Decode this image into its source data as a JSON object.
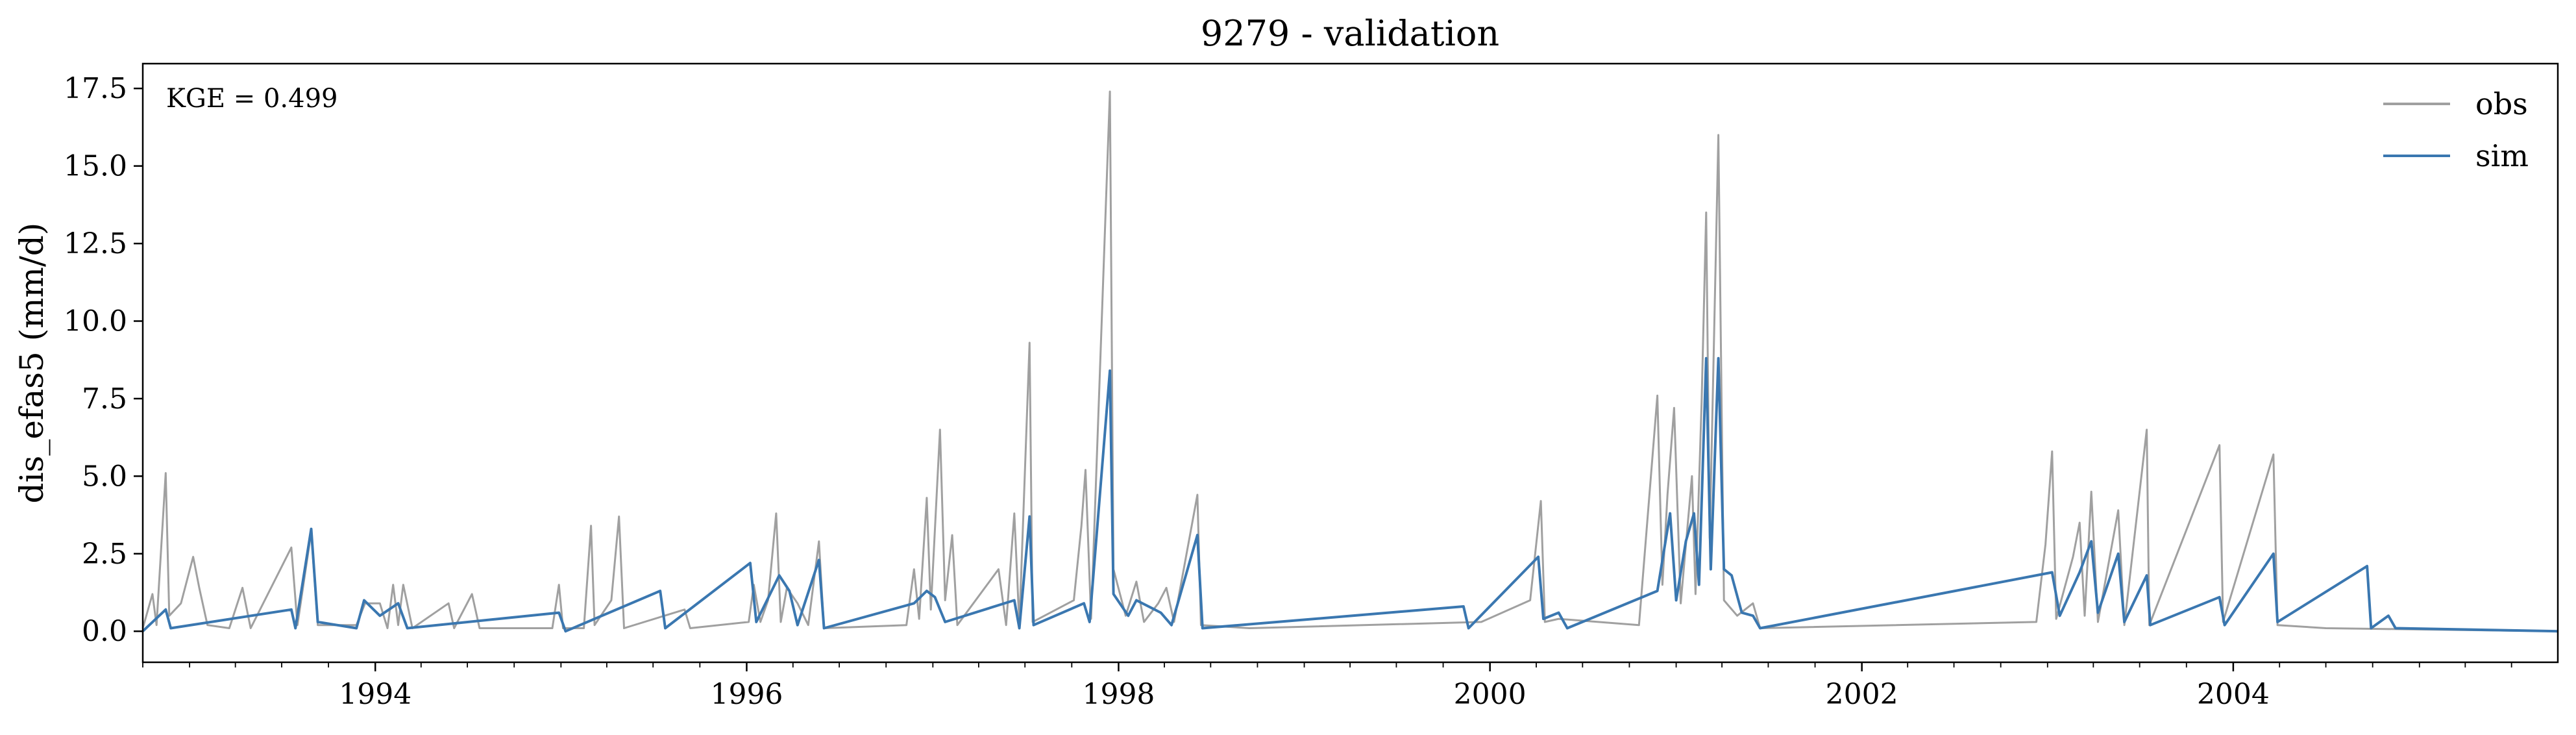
{
  "chart_data": {
    "type": "line",
    "title": "9279 - validation",
    "xlabel": "",
    "ylabel": "dis_efas5 (mm/d)",
    "annotation": "KGE = 0.499",
    "x_range": [
      "1992-10-01",
      "2005-09-30"
    ],
    "ylim": [
      -1.0,
      18.3
    ],
    "grid": false,
    "legend_position": "top-right",
    "x_ticks": [
      "1994",
      "1996",
      "1998",
      "2000",
      "2002",
      "2004"
    ],
    "y_ticks": [
      "0.0",
      "2.5",
      "5.0",
      "7.5",
      "10.0",
      "12.5",
      "15.0",
      "17.5"
    ],
    "series": [
      {
        "name": "obs",
        "color": "#a0a0a0",
        "points": [
          [
            "1992-10-01",
            0.1
          ],
          [
            "1992-10-20",
            1.2
          ],
          [
            "1992-10-28",
            0.2
          ],
          [
            "1992-11-15",
            5.1
          ],
          [
            "1992-11-22",
            0.5
          ],
          [
            "1992-12-15",
            0.9
          ],
          [
            "1993-01-08",
            2.4
          ],
          [
            "1993-01-20",
            1.4
          ],
          [
            "1993-02-05",
            0.2
          ],
          [
            "1993-03-20",
            0.1
          ],
          [
            "1993-04-15",
            1.4
          ],
          [
            "1993-05-01",
            0.1
          ],
          [
            "1993-07-20",
            2.7
          ],
          [
            "1993-08-01",
            0.2
          ],
          [
            "1993-08-28",
            3.2
          ],
          [
            "1993-09-10",
            0.2
          ],
          [
            "1993-11-25",
            0.2
          ],
          [
            "1993-12-12",
            0.9
          ],
          [
            "1994-01-10",
            0.9
          ],
          [
            "1994-01-25",
            0.1
          ],
          [
            "1994-02-05",
            1.5
          ],
          [
            "1994-02-15",
            0.2
          ],
          [
            "1994-02-25",
            1.5
          ],
          [
            "1994-03-15",
            0.1
          ],
          [
            "1994-05-25",
            0.9
          ],
          [
            "1994-06-05",
            0.1
          ],
          [
            "1994-07-10",
            1.2
          ],
          [
            "1994-07-25",
            0.1
          ],
          [
            "1994-12-15",
            0.1
          ],
          [
            "1994-12-28",
            1.5
          ],
          [
            "1995-01-05",
            0.1
          ],
          [
            "1995-02-15",
            0.1
          ],
          [
            "1995-03-01",
            3.4
          ],
          [
            "1995-03-08",
            0.2
          ],
          [
            "1995-04-10",
            1.0
          ],
          [
            "1995-04-25",
            3.7
          ],
          [
            "1995-05-05",
            0.1
          ],
          [
            "1995-09-01",
            0.7
          ],
          [
            "1995-09-12",
            0.1
          ],
          [
            "1996-01-05",
            0.3
          ],
          [
            "1996-01-15",
            1.5
          ],
          [
            "1996-01-28",
            0.3
          ],
          [
            "1996-02-12",
            1.0
          ],
          [
            "1996-02-28",
            3.8
          ],
          [
            "1996-03-08",
            0.3
          ],
          [
            "1996-03-20",
            1.4
          ],
          [
            "1996-04-10",
            0.9
          ],
          [
            "1996-05-01",
            0.2
          ],
          [
            "1996-05-22",
            2.9
          ],
          [
            "1996-06-01",
            0.1
          ],
          [
            "1996-11-10",
            0.2
          ],
          [
            "1996-11-25",
            2.0
          ],
          [
            "1996-12-05",
            0.4
          ],
          [
            "1996-12-20",
            4.3
          ],
          [
            "1996-12-28",
            0.7
          ],
          [
            "1997-01-15",
            6.5
          ],
          [
            "1997-01-25",
            1.0
          ],
          [
            "1997-02-08",
            3.1
          ],
          [
            "1997-02-18",
            0.2
          ],
          [
            "1997-05-10",
            2.0
          ],
          [
            "1997-05-25",
            0.2
          ],
          [
            "1997-06-10",
            3.8
          ],
          [
            "1997-06-20",
            0.2
          ],
          [
            "1997-07-10",
            9.3
          ],
          [
            "1997-07-16",
            0.3
          ],
          [
            "1997-10-05",
            1.0
          ],
          [
            "1997-10-20",
            3.4
          ],
          [
            "1997-10-28",
            5.2
          ],
          [
            "1997-11-08",
            0.4
          ],
          [
            "1997-12-15",
            17.4
          ],
          [
            "1997-12-22",
            2.0
          ],
          [
            "1998-01-15",
            0.5
          ],
          [
            "1998-02-05",
            1.6
          ],
          [
            "1998-02-20",
            0.3
          ],
          [
            "1998-03-20",
            0.9
          ],
          [
            "1998-04-05",
            1.4
          ],
          [
            "1998-04-20",
            0.3
          ],
          [
            "1998-06-05",
            4.4
          ],
          [
            "1998-06-12",
            0.2
          ],
          [
            "1998-09-15",
            0.1
          ],
          [
            "1999-12-15",
            0.3
          ],
          [
            "2000-03-20",
            1.0
          ],
          [
            "2000-04-10",
            4.2
          ],
          [
            "2000-04-18",
            0.3
          ],
          [
            "2000-05-15",
            0.4
          ],
          [
            "2000-10-20",
            0.2
          ],
          [
            "2000-11-25",
            7.6
          ],
          [
            "2000-12-05",
            1.5
          ],
          [
            "2000-12-15",
            4.4
          ],
          [
            "2000-12-28",
            7.2
          ],
          [
            "2001-01-10",
            0.9
          ],
          [
            "2001-02-01",
            5.0
          ],
          [
            "2001-02-08",
            1.2
          ],
          [
            "2001-02-20",
            7.4
          ],
          [
            "2001-03-01",
            13.5
          ],
          [
            "2001-03-08",
            3.0
          ],
          [
            "2001-03-25",
            16.0
          ],
          [
            "2001-04-05",
            1.0
          ],
          [
            "2001-05-01",
            0.5
          ],
          [
            "2001-06-01",
            0.9
          ],
          [
            "2001-06-15",
            0.1
          ],
          [
            "2002-12-10",
            0.3
          ],
          [
            "2002-12-28",
            2.8
          ],
          [
            "2003-01-10",
            5.8
          ],
          [
            "2003-01-18",
            0.4
          ],
          [
            "2003-02-20",
            2.4
          ],
          [
            "2003-03-05",
            3.5
          ],
          [
            "2003-03-15",
            0.5
          ],
          [
            "2003-03-28",
            4.5
          ],
          [
            "2003-04-10",
            0.3
          ],
          [
            "2003-05-20",
            3.9
          ],
          [
            "2003-06-01",
            0.2
          ],
          [
            "2003-07-15",
            6.5
          ],
          [
            "2003-07-20",
            0.2
          ],
          [
            "2003-12-05",
            6.0
          ],
          [
            "2003-12-12",
            0.3
          ],
          [
            "2004-03-20",
            5.7
          ],
          [
            "2004-03-28",
            0.2
          ],
          [
            "2004-07-01",
            0.1
          ],
          [
            "2005-09-30",
            0.0
          ]
        ]
      },
      {
        "name": "sim",
        "color": "#3a77b0",
        "points": [
          [
            "1992-10-01",
            0.0
          ],
          [
            "1992-11-15",
            0.7
          ],
          [
            "1992-11-25",
            0.1
          ],
          [
            "1993-07-20",
            0.7
          ],
          [
            "1993-07-28",
            0.1
          ],
          [
            "1993-08-28",
            3.3
          ],
          [
            "1993-09-10",
            0.3
          ],
          [
            "1993-11-25",
            0.1
          ],
          [
            "1993-12-10",
            1.0
          ],
          [
            "1994-01-10",
            0.5
          ],
          [
            "1994-02-15",
            0.9
          ],
          [
            "1994-03-05",
            0.1
          ],
          [
            "1994-12-28",
            0.6
          ],
          [
            "1995-01-10",
            0.0
          ],
          [
            "1995-07-15",
            1.3
          ],
          [
            "1995-07-25",
            0.1
          ],
          [
            "1996-01-08",
            2.2
          ],
          [
            "1996-01-20",
            0.3
          ],
          [
            "1996-02-10",
            1.0
          ],
          [
            "1996-03-05",
            1.8
          ],
          [
            "1996-03-25",
            1.3
          ],
          [
            "1996-04-10",
            0.2
          ],
          [
            "1996-05-22",
            2.3
          ],
          [
            "1996-06-01",
            0.1
          ],
          [
            "1996-11-25",
            0.9
          ],
          [
            "1996-12-20",
            1.3
          ],
          [
            "1997-01-05",
            1.1
          ],
          [
            "1997-01-25",
            0.3
          ],
          [
            "1997-06-10",
            1.0
          ],
          [
            "1997-06-20",
            0.1
          ],
          [
            "1997-07-10",
            3.7
          ],
          [
            "1997-07-18",
            0.2
          ],
          [
            "1997-10-25",
            0.9
          ],
          [
            "1997-11-05",
            0.3
          ],
          [
            "1997-12-15",
            8.4
          ],
          [
            "1997-12-22",
            1.2
          ],
          [
            "1998-01-20",
            0.5
          ],
          [
            "1998-02-05",
            1.0
          ],
          [
            "1998-03-25",
            0.6
          ],
          [
            "1998-04-15",
            0.2
          ],
          [
            "1998-06-05",
            3.1
          ],
          [
            "1998-06-15",
            0.1
          ],
          [
            "1999-11-10",
            0.8
          ],
          [
            "1999-11-20",
            0.1
          ],
          [
            "2000-04-05",
            2.4
          ],
          [
            "2000-04-15",
            0.4
          ],
          [
            "2000-05-15",
            0.6
          ],
          [
            "2000-06-01",
            0.1
          ],
          [
            "2000-11-25",
            1.3
          ],
          [
            "2000-12-20",
            3.8
          ],
          [
            "2001-01-01",
            1.0
          ],
          [
            "2001-01-20",
            2.9
          ],
          [
            "2001-02-05",
            3.8
          ],
          [
            "2001-02-15",
            1.5
          ],
          [
            "2001-03-01",
            8.8
          ],
          [
            "2001-03-10",
            2.0
          ],
          [
            "2001-03-25",
            8.8
          ],
          [
            "2001-04-05",
            2.0
          ],
          [
            "2001-04-20",
            1.8
          ],
          [
            "2001-05-10",
            0.6
          ],
          [
            "2001-06-01",
            0.5
          ],
          [
            "2001-06-15",
            0.1
          ],
          [
            "2003-01-10",
            1.9
          ],
          [
            "2003-01-25",
            0.5
          ],
          [
            "2003-03-05",
            1.9
          ],
          [
            "2003-03-28",
            2.9
          ],
          [
            "2003-04-10",
            0.6
          ],
          [
            "2003-05-20",
            2.5
          ],
          [
            "2003-06-01",
            0.3
          ],
          [
            "2003-07-15",
            1.8
          ],
          [
            "2003-07-22",
            0.2
          ],
          [
            "2003-12-05",
            1.1
          ],
          [
            "2003-12-15",
            0.2
          ],
          [
            "2004-03-20",
            2.5
          ],
          [
            "2004-03-28",
            0.3
          ],
          [
            "2004-09-20",
            2.1
          ],
          [
            "2004-09-28",
            0.1
          ],
          [
            "2004-11-01",
            0.5
          ],
          [
            "2004-11-15",
            0.1
          ],
          [
            "2005-09-30",
            0.0
          ]
        ]
      }
    ]
  }
}
